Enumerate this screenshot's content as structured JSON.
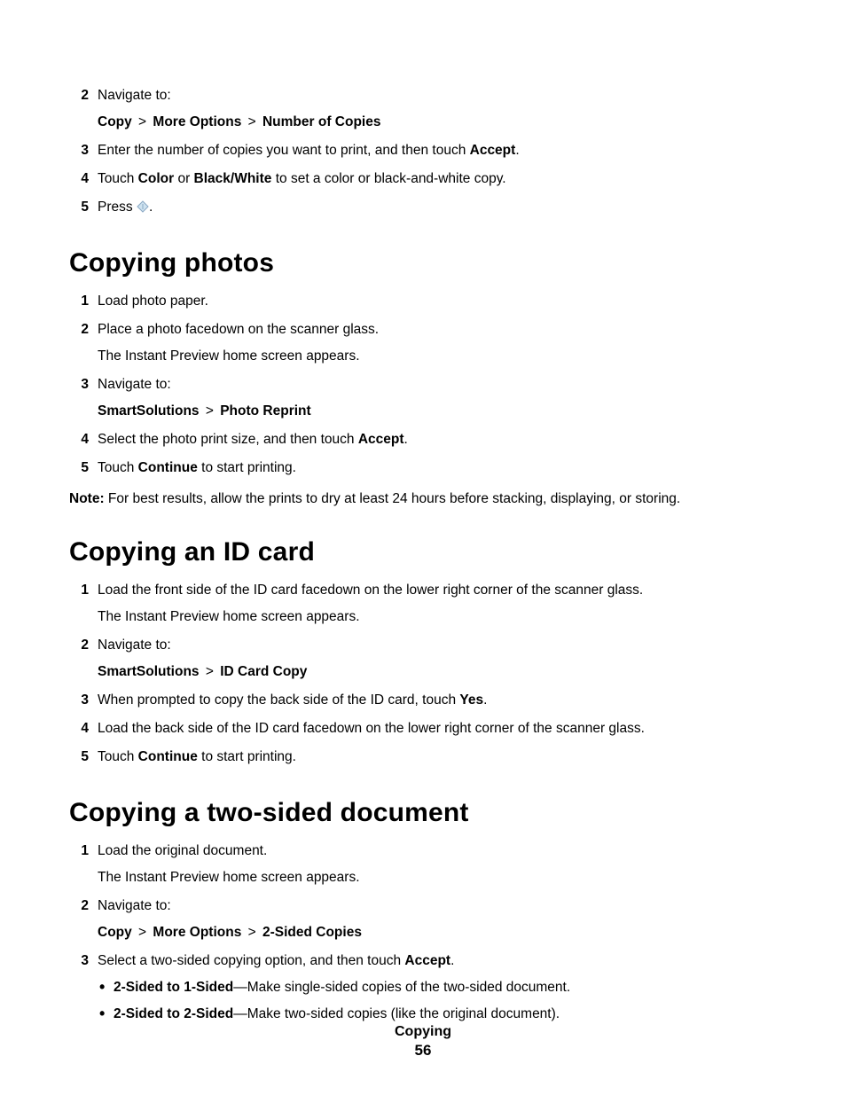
{
  "intro_steps": [
    {
      "num": "2",
      "lines": [
        {
          "type": "text",
          "text": "Navigate to:"
        },
        {
          "type": "breadcrumb",
          "parts": [
            "Copy",
            "More Options",
            "Number of Copies"
          ]
        }
      ]
    },
    {
      "num": "3",
      "lines": [
        {
          "type": "mixed",
          "runs": [
            {
              "t": "Enter the number of copies you want to print, and then touch ",
              "b": false
            },
            {
              "t": "Accept",
              "b": true
            },
            {
              "t": ".",
              "b": false
            }
          ]
        }
      ]
    },
    {
      "num": "4",
      "lines": [
        {
          "type": "mixed",
          "runs": [
            {
              "t": "Touch ",
              "b": false
            },
            {
              "t": "Color",
              "b": true
            },
            {
              "t": " or ",
              "b": false
            },
            {
              "t": "Black/White",
              "b": true
            },
            {
              "t": " to set a color or black-and-white copy.",
              "b": false
            }
          ]
        }
      ]
    },
    {
      "num": "5",
      "lines": [
        {
          "type": "press_icon",
          "before": "Press ",
          "after": "."
        }
      ]
    }
  ],
  "photos": {
    "heading": "Copying photos",
    "steps": [
      {
        "num": "1",
        "lines": [
          {
            "type": "text",
            "text": "Load photo paper."
          }
        ]
      },
      {
        "num": "2",
        "lines": [
          {
            "type": "text",
            "text": "Place a photo facedown on the scanner glass."
          },
          {
            "type": "text",
            "text": "The Instant Preview home screen appears."
          }
        ]
      },
      {
        "num": "3",
        "lines": [
          {
            "type": "text",
            "text": "Navigate to:"
          },
          {
            "type": "breadcrumb",
            "parts": [
              "SmartSolutions",
              "Photo Reprint"
            ]
          }
        ]
      },
      {
        "num": "4",
        "lines": [
          {
            "type": "mixed",
            "runs": [
              {
                "t": "Select the photo print size, and then touch ",
                "b": false
              },
              {
                "t": "Accept",
                "b": true
              },
              {
                "t": ".",
                "b": false
              }
            ]
          }
        ]
      },
      {
        "num": "5",
        "lines": [
          {
            "type": "mixed",
            "runs": [
              {
                "t": "Touch ",
                "b": false
              },
              {
                "t": "Continue",
                "b": true
              },
              {
                "t": " to start printing.",
                "b": false
              }
            ]
          }
        ]
      }
    ],
    "note_label": "Note:",
    "note_text": " For best results, allow the prints to dry at least 24 hours before stacking, displaying, or storing."
  },
  "idcard": {
    "heading": "Copying an ID card",
    "steps": [
      {
        "num": "1",
        "lines": [
          {
            "type": "text",
            "text": "Load the front side of the ID card facedown on the lower right corner of the scanner glass."
          },
          {
            "type": "text",
            "text": "The Instant Preview home screen appears."
          }
        ]
      },
      {
        "num": "2",
        "lines": [
          {
            "type": "text",
            "text": "Navigate to:"
          },
          {
            "type": "breadcrumb",
            "parts": [
              "SmartSolutions",
              "ID Card Copy"
            ]
          }
        ]
      },
      {
        "num": "3",
        "lines": [
          {
            "type": "mixed",
            "runs": [
              {
                "t": "When prompted to copy the back side of the ID card, touch ",
                "b": false
              },
              {
                "t": "Yes",
                "b": true
              },
              {
                "t": ".",
                "b": false
              }
            ]
          }
        ]
      },
      {
        "num": "4",
        "lines": [
          {
            "type": "text",
            "text": "Load the back side of the ID card facedown on the lower right corner of the scanner glass."
          }
        ]
      },
      {
        "num": "5",
        "lines": [
          {
            "type": "mixed",
            "runs": [
              {
                "t": "Touch ",
                "b": false
              },
              {
                "t": "Continue",
                "b": true
              },
              {
                "t": " to start printing.",
                "b": false
              }
            ]
          }
        ]
      }
    ]
  },
  "twosided": {
    "heading": "Copying a two-sided document",
    "steps": [
      {
        "num": "1",
        "lines": [
          {
            "type": "text",
            "text": "Load the original document."
          },
          {
            "type": "text",
            "text": "The Instant Preview home screen appears."
          }
        ]
      },
      {
        "num": "2",
        "lines": [
          {
            "type": "text",
            "text": "Navigate to:"
          },
          {
            "type": "breadcrumb",
            "parts": [
              "Copy",
              "More Options",
              "2-Sided Copies"
            ]
          }
        ]
      },
      {
        "num": "3",
        "lines": [
          {
            "type": "mixed",
            "runs": [
              {
                "t": "Select a two-sided copying option, and then touch ",
                "b": false
              },
              {
                "t": "Accept",
                "b": true
              },
              {
                "t": ".",
                "b": false
              }
            ]
          },
          {
            "type": "bullets",
            "items": [
              {
                "runs": [
                  {
                    "t": "2-Sided to 1-Sided",
                    "b": true
                  },
                  {
                    "t": "—Make single-sided copies of the two-sided document.",
                    "b": false
                  }
                ]
              },
              {
                "runs": [
                  {
                    "t": "2-Sided to 2-Sided",
                    "b": true
                  },
                  {
                    "t": "—Make two-sided copies (like the original document).",
                    "b": false
                  }
                ]
              }
            ]
          }
        ]
      }
    ]
  },
  "footer": {
    "title": "Copying",
    "page": "56"
  },
  "breadcrumb_sep": ">",
  "icon": {
    "stroke": "#8aa8c4",
    "fill": "#cfe3f0"
  }
}
